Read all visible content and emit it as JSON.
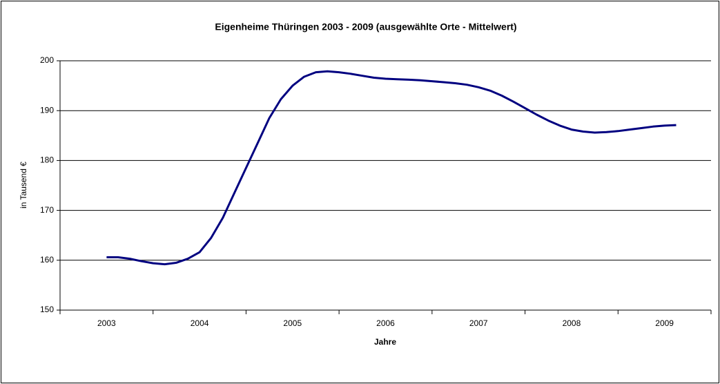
{
  "chart_data": {
    "type": "line",
    "title": "Eigenheime Thüringen 2003 - 2009 (ausgewählte Orte - Mittelwert)",
    "x_label": "Jahre",
    "y_label": "in Tausend €",
    "x": [
      2003,
      2003.125,
      2003.25,
      2003.375,
      2003.5,
      2003.625,
      2003.75,
      2003.875,
      2004,
      2004.125,
      2004.25,
      2004.375,
      2004.5,
      2004.625,
      2004.75,
      2004.875,
      2005,
      2005.125,
      2005.25,
      2005.375,
      2005.5,
      2005.625,
      2005.75,
      2005.875,
      2006,
      2006.125,
      2006.25,
      2006.375,
      2006.5,
      2006.625,
      2006.75,
      2006.875,
      2007,
      2007.125,
      2007.25,
      2007.375,
      2007.5,
      2007.625,
      2007.75,
      2007.875,
      2008,
      2008.125,
      2008.25,
      2008.375,
      2008.5,
      2008.625,
      2008.75,
      2008.875,
      2009,
      2009.125
    ],
    "series": [
      {
        "name": "Mittelwert",
        "color": "#000080",
        "values": [
          160.6,
          160.6,
          160.3,
          159.8,
          159.4,
          159.2,
          159.5,
          160.3,
          161.6,
          164.5,
          168.5,
          173.5,
          178.5,
          183.5,
          188.5,
          192.3,
          195,
          196.8,
          197.7,
          197.9,
          197.7,
          197.4,
          197,
          196.6,
          196.4,
          196.3,
          196.2,
          196.1,
          195.9,
          195.7,
          195.5,
          195.2,
          194.7,
          194,
          193,
          191.8,
          190.5,
          189.2,
          188,
          187,
          186.2,
          185.8,
          185.6,
          185.7,
          185.9,
          186.2,
          186.5,
          186.8,
          187,
          187.1
        ]
      }
    ],
    "xlim": [
      2002.5,
      2009.5
    ],
    "xticks": [
      2003,
      2004,
      2005,
      2006,
      2007,
      2008,
      2009
    ],
    "ylim": [
      150,
      200
    ],
    "yticks": [
      150,
      160,
      170,
      180,
      190,
      200
    ],
    "grid": true
  }
}
